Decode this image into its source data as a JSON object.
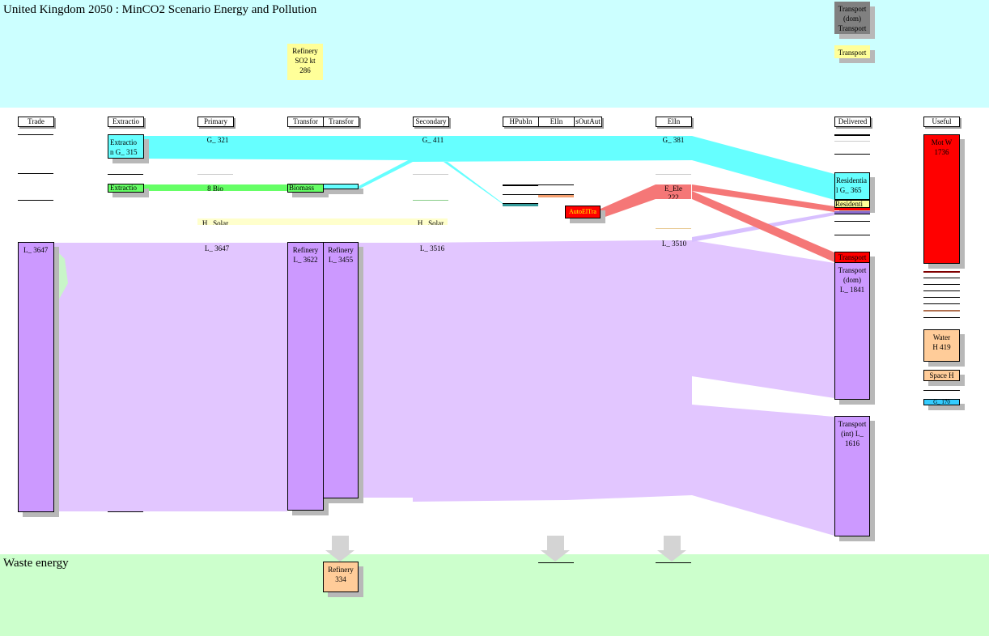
{
  "title": "United Kingdom 2050 : MinCO2 Scenario  Energy and Pollution",
  "waste_title": "Waste energy",
  "columns": [
    "Trade",
    "Extractio",
    "Primary",
    "Transfor",
    "Transfor",
    "Secondary",
    "HPubIn",
    "ElIn",
    "sOutAut",
    "ElIn",
    "Delivered",
    "Useful"
  ],
  "pollution": {
    "refinery_so2": "Refinery\nSO2 kt\n286",
    "transport_dom_gray": "Transport\n(dom)",
    "transport_gray2": "Transport",
    "transport_yellow": "Transport"
  },
  "nodes": {
    "extraction_gas": "Extractio\nn G_ 315",
    "extraction_bio": "Extractio",
    "biomass": "Biomass",
    "trade_oil": "L_ 3647",
    "refinery_1": "Refinery\nL_ 3622",
    "refinery_2": "Refinery\nL_ 3455",
    "auto_el": "AutoElTra",
    "residential": "Residentia\nl  G_ 365",
    "res_yellow": "Residenti",
    "transport_red": "Transport",
    "transport_dom": "Transport\n(dom)\nL_ 1841",
    "transport_int": "Transport\n(int)  L_\n1616",
    "motor": "Mot W\n1736",
    "water": "Water\nH 419",
    "space_h": "Space H",
    "gas_blue": "G_ 170",
    "waste_refinery": "Refinery\n334",
    "el_e": "E_Ele\n222"
  },
  "labels": {
    "primary_gas": "G_ 321",
    "secondary_gas": "G_ 411",
    "elin_gas": "G_ 381",
    "primary_bio": "8  Bio",
    "primary_solar": "H_ Solar",
    "secondary_solar": "H_ Solar",
    "primary_oil": "L_ 3647",
    "secondary_oil": "L_ 3516",
    "elin_oil": "L_ 3510"
  },
  "colors": {
    "top_band": "#ccffff",
    "bottom_band": "#ccffcc",
    "gas": "#66ffff",
    "oil": "#cc99ff",
    "oil_flow": "#e2c6ff",
    "electricity": "#ff0000",
    "el_flow": "#f57777",
    "bio": "#66ff66",
    "solar": "#ffffcc",
    "heat": "#ffcc99",
    "pollution_yellow": "#ffff99",
    "gray_node": "#808080"
  }
}
